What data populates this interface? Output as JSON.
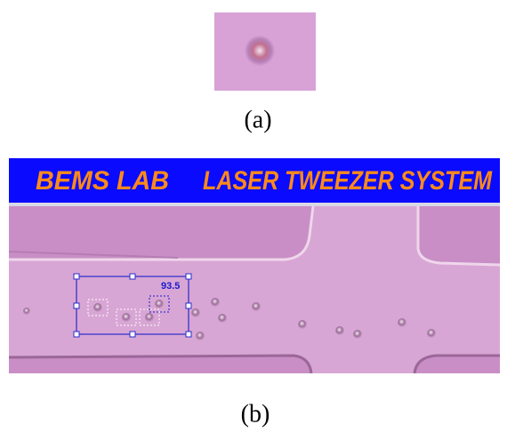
{
  "figure": {
    "panels": [
      {
        "label": "(a)"
      },
      {
        "label": "(b)",
        "banner_left": "BEMS LAB",
        "banner_right": "LASER TWEEZER SYSTEM",
        "measurement": 93.5
      }
    ]
  }
}
